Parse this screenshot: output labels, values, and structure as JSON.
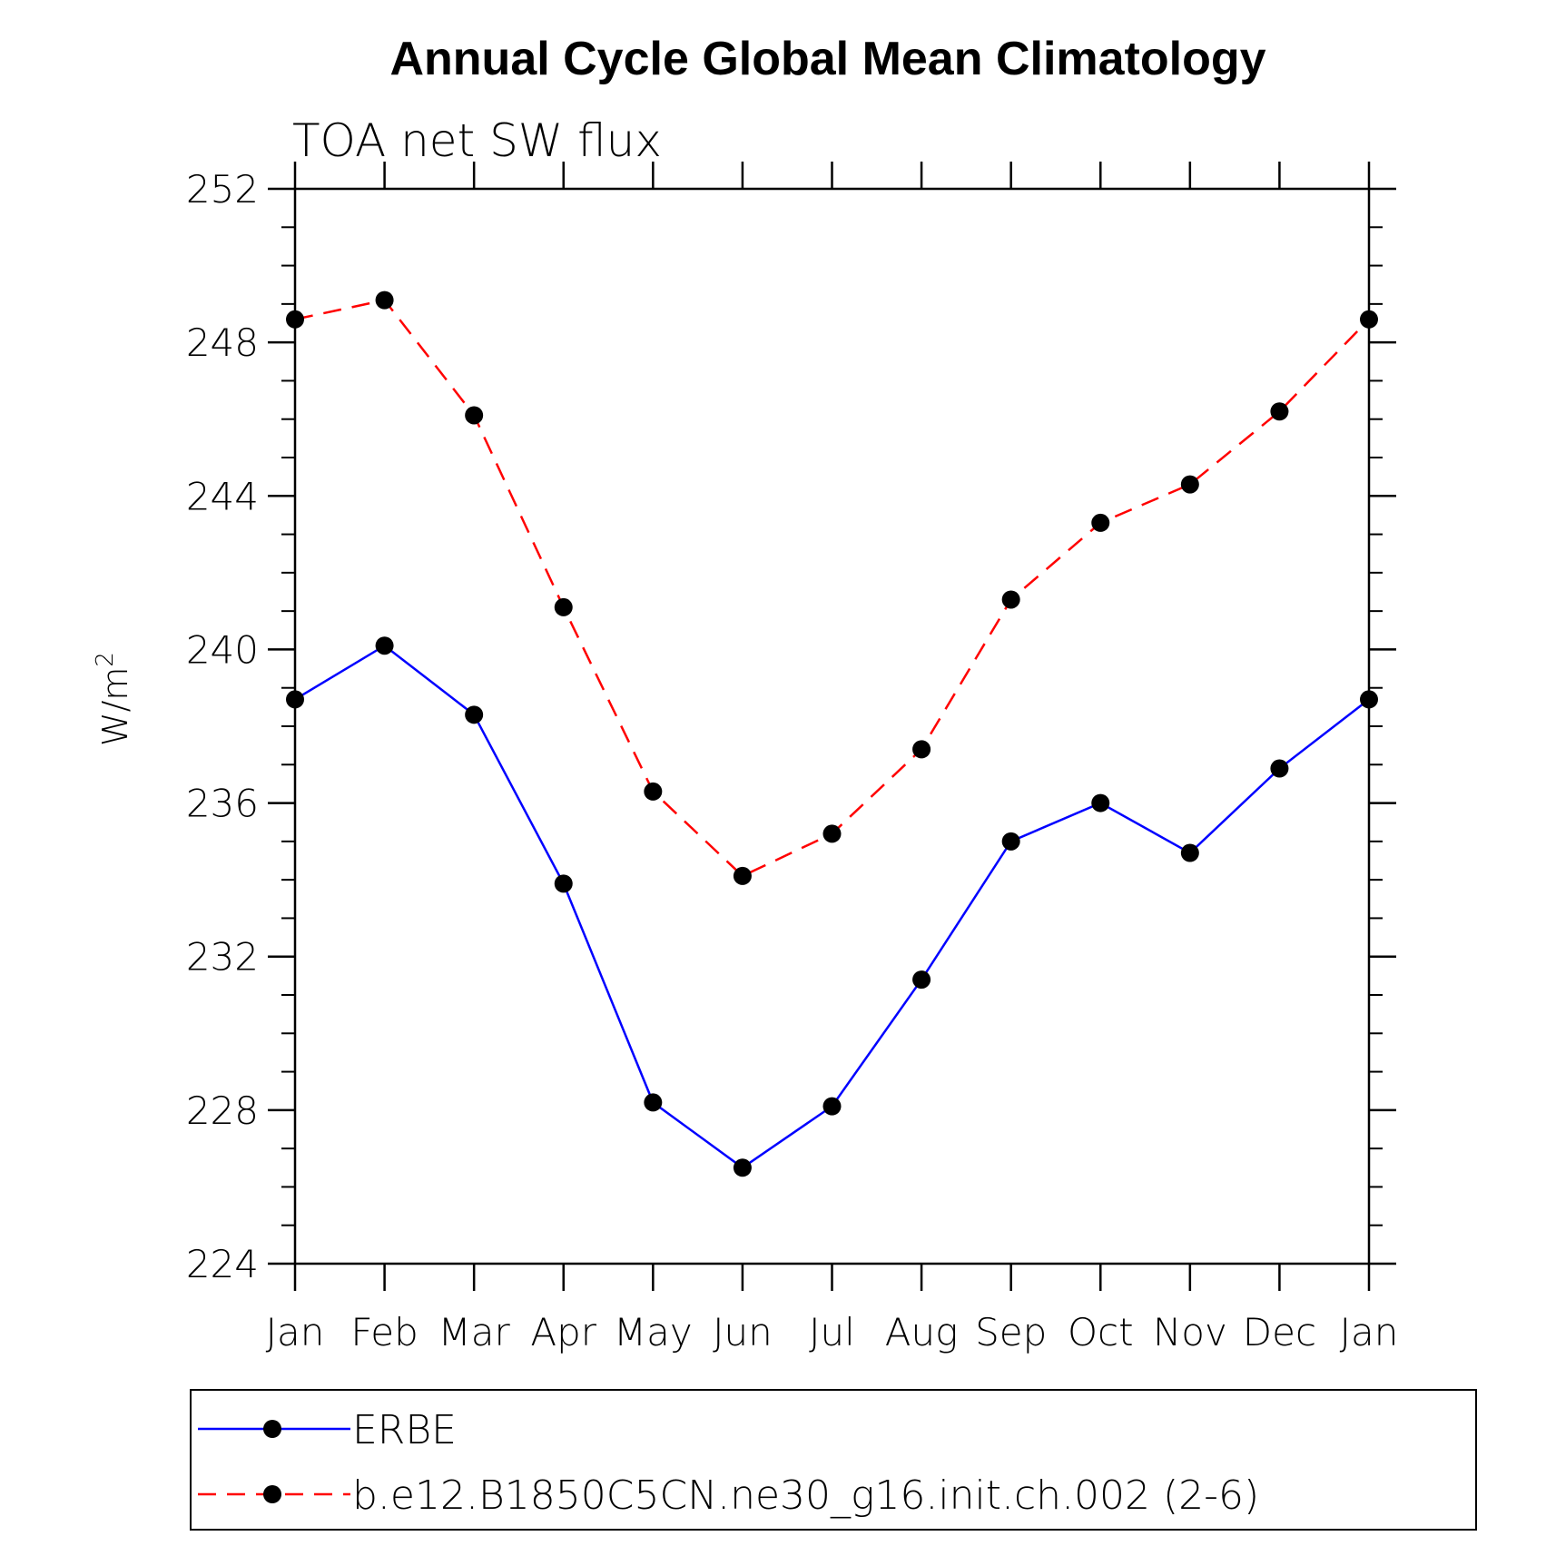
{
  "chart_data": {
    "type": "line",
    "title": "Annual Cycle Global Mean Climatology",
    "subtitle": "TOA net SW flux",
    "xlabel": "",
    "ylabel": "W/m",
    "ylabel_superscript": "2",
    "categories": [
      "Jan",
      "Feb",
      "Mar",
      "Apr",
      "May",
      "Jun",
      "Jul",
      "Aug",
      "Sep",
      "Oct",
      "Nov",
      "Dec",
      "Jan"
    ],
    "ylim": [
      224,
      252
    ],
    "yticks": [
      224,
      228,
      232,
      236,
      240,
      244,
      248,
      252
    ],
    "yticks_labels": [
      "224",
      "228",
      "232",
      "236",
      "240",
      "244",
      "248",
      "252"
    ],
    "y_minor_step": 1,
    "grid": false,
    "legend_position": "bottom",
    "series": [
      {
        "name": "ERBE",
        "color": "#0000ff",
        "dash": "solid",
        "marker": "filled-circle",
        "values": [
          238.7,
          240.1,
          238.3,
          233.9,
          228.2,
          226.5,
          228.1,
          231.4,
          235.0,
          236.0,
          234.7,
          236.9,
          238.7
        ]
      },
      {
        "name": "b.e12.B1850C5CN.ne30_g16.init.ch.002 (2-6)",
        "color": "#ff0000",
        "dash": "dashed",
        "marker": "filled-circle",
        "values": [
          248.6,
          249.1,
          246.1,
          241.1,
          236.3,
          234.1,
          235.2,
          237.4,
          241.3,
          243.3,
          244.3,
          246.2,
          248.6
        ]
      }
    ]
  }
}
